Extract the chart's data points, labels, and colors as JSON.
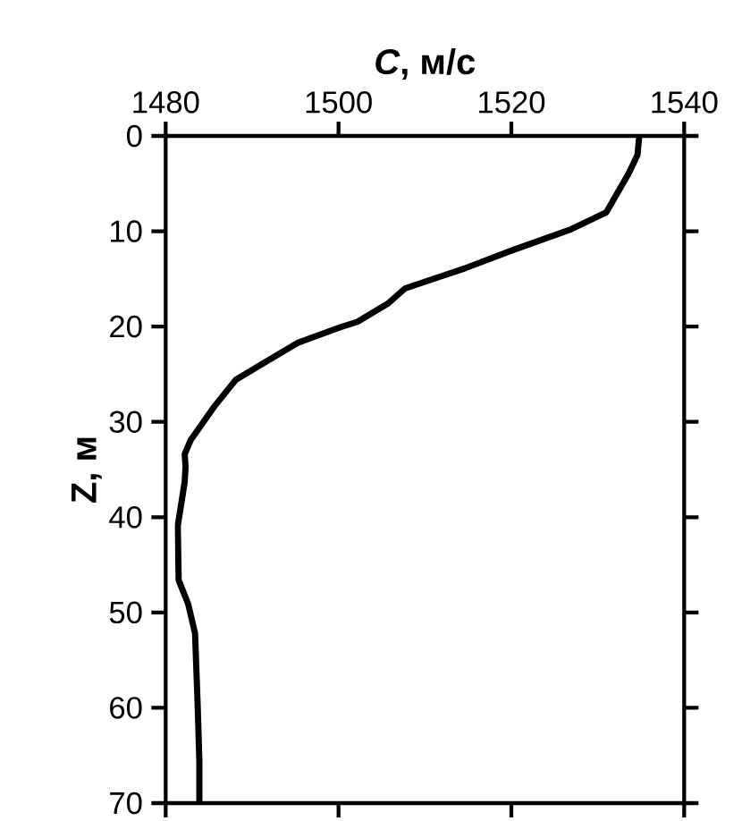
{
  "chart_data": {
    "type": "line",
    "xlabel": "*C*, м/с",
    "ylabel": "Z, м",
    "x": [
      1534.8,
      1534.6,
      1533.6,
      1531.0,
      1526.9,
      1520.1,
      1514.6,
      1507.7,
      1505.7,
      1502.2,
      1500.1,
      1495.3,
      1491.2,
      1488.1,
      1485.7,
      1482.9,
      1482.2,
      1482.3,
      1482.2,
      1481.4,
      1481.5,
      1482.6,
      1483.4,
      1483.7,
      1483.9,
      1483.9
    ],
    "values": [
      0,
      2,
      3.9,
      8,
      9.8,
      12,
      13.9,
      16,
      17.6,
      19.5,
      20.1,
      21.7,
      23.9,
      25.6,
      28.3,
      31.9,
      33.4,
      34.7,
      36.3,
      40.9,
      46.6,
      49.1,
      52.2,
      59.7,
      65.6,
      70
    ],
    "color": "#000000",
    "xlim": [
      1480,
      1540
    ],
    "xticks": [
      1480,
      1500,
      1520,
      1540
    ],
    "ylim": [
      70,
      0
    ],
    "yticks": [
      0,
      10,
      20,
      30,
      40,
      50,
      60,
      70
    ],
    "grid": false,
    "marker": "none",
    "line_style": "solid"
  }
}
